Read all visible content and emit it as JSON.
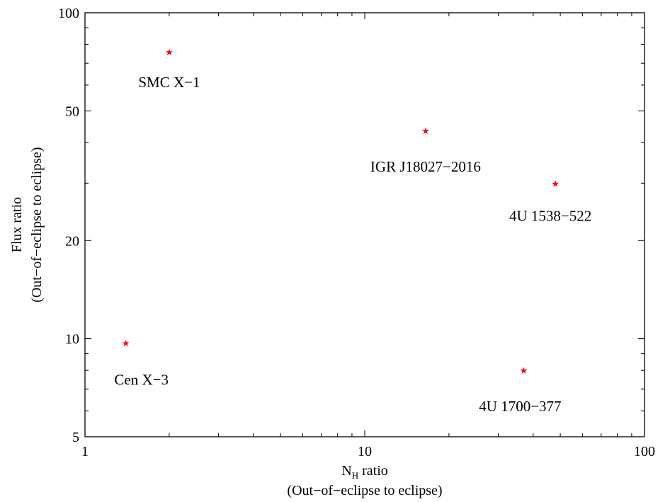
{
  "chart_data": {
    "type": "scatter",
    "xscale": "log",
    "yscale": "log",
    "xlim": [
      1,
      100
    ],
    "ylim": [
      5,
      100
    ],
    "x_ticks": [
      1,
      10,
      100
    ],
    "x_tick_labels": [
      "1",
      "10",
      "100"
    ],
    "y_ticks": [
      5,
      10,
      20,
      50,
      100
    ],
    "y_tick_labels": [
      "5",
      "10",
      "20",
      "50",
      "100"
    ],
    "xlabel_main": "N",
    "xlabel_sub": "H",
    "xlabel_suffix": " ratio",
    "xlabel_line2": "(Out−of−eclipse to eclipse)",
    "ylabel_line1": "Flux ratio",
    "ylabel_line2": "(Out−of−eclipse to eclipse)",
    "grid": false,
    "marker_color": "#ff0000",
    "points": [
      {
        "label": "SMC X−1",
        "x": 2.0,
        "y": 76.0
      },
      {
        "label": "IGR J18027−2016",
        "x": 16.5,
        "y": 43.5
      },
      {
        "label": "4U 1538−522",
        "x": 48.0,
        "y": 30.0
      },
      {
        "label": "Cen X−3",
        "x": 1.4,
        "y": 9.7
      },
      {
        "label": "4U 1700−377",
        "x": 37.0,
        "y": 8.0
      }
    ]
  }
}
